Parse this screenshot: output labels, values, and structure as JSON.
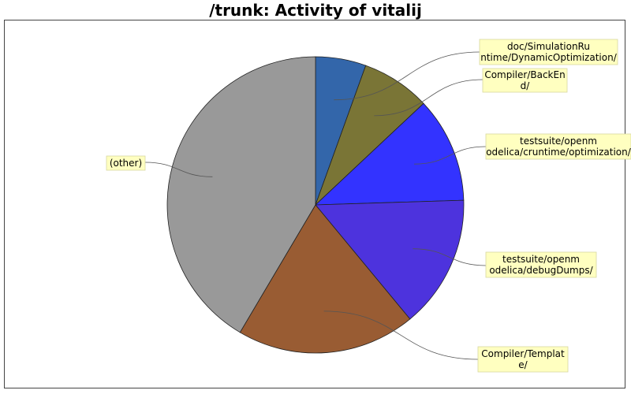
{
  "chart_data": {
    "type": "pie",
    "title": "/trunk: Activity of vitalij",
    "slices": [
      {
        "label_lines": [
          "doc/SimulationRu",
          "ntime/DynamicOptimization/"
        ],
        "value": 5.5,
        "color": "#3366aa"
      },
      {
        "label_lines": [
          "Compiler/BackEn",
          "d/"
        ],
        "value": 7.5,
        "color": "#7a7536"
      },
      {
        "label_lines": [
          "testsuite/openm",
          "odelica/cruntime/optimization/"
        ],
        "value": 11.5,
        "color": "#3333ff"
      },
      {
        "label_lines": [
          "testsuite/openm",
          "odelica/debugDumps/"
        ],
        "value": 14.5,
        "color": "#4d33dd"
      },
      {
        "label_lines": [
          "Compiler/Templat",
          "e/"
        ],
        "value": 19.5,
        "color": "#995c33"
      },
      {
        "label_lines": [
          "(other)"
        ],
        "value": 41.5,
        "color": "#999999"
      }
    ],
    "legend": "callout labels"
  }
}
